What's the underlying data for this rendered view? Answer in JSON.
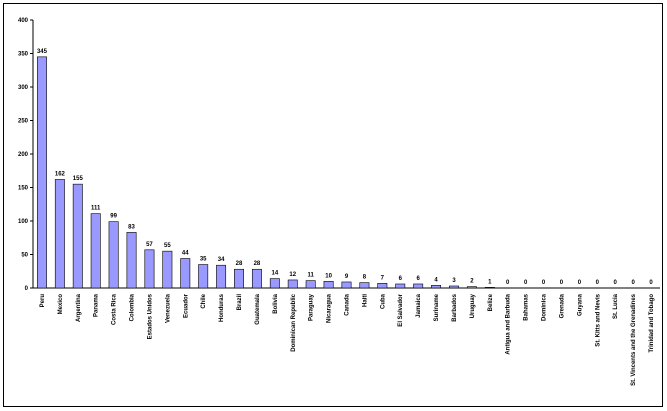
{
  "chart_data": {
    "type": "bar",
    "categories": [
      "Peru",
      "Mexico",
      "Argentina",
      "Panama",
      "Costa Rica",
      "Colombia",
      "Estados Unidos",
      "Venezuela",
      "Ecuador",
      "Chile",
      "Honduras",
      "Brazil",
      "Guatemala",
      "Bolivia",
      "Dominican Republic",
      "Paraguay",
      "Nicaragua",
      "Canada",
      "Haiti",
      "Cuba",
      "El Salvador",
      "Jamaica",
      "Suriname",
      "Barbados",
      "Uruguay",
      "Belize",
      "Antigua and Barbuda",
      "Bahamas",
      "Dominica",
      "Grenada",
      "Guyana",
      "St. Kitts and Nevis",
      "St. Lucia",
      "St. Vincents and the Grenadines",
      "Trinidad and Tobago"
    ],
    "values": [
      345,
      162,
      155,
      111,
      99,
      83,
      57,
      55,
      44,
      35,
      34,
      28,
      28,
      14,
      12,
      11,
      10,
      9,
      8,
      7,
      6,
      6,
      4,
      3,
      2,
      1,
      0,
      0,
      0,
      0,
      0,
      0,
      0,
      0,
      0
    ],
    "color": "#9999ff",
    "ylim": [
      0,
      400
    ],
    "yticks": [
      0,
      50,
      100,
      150,
      200,
      250,
      300,
      350,
      400
    ],
    "grid": false
  }
}
